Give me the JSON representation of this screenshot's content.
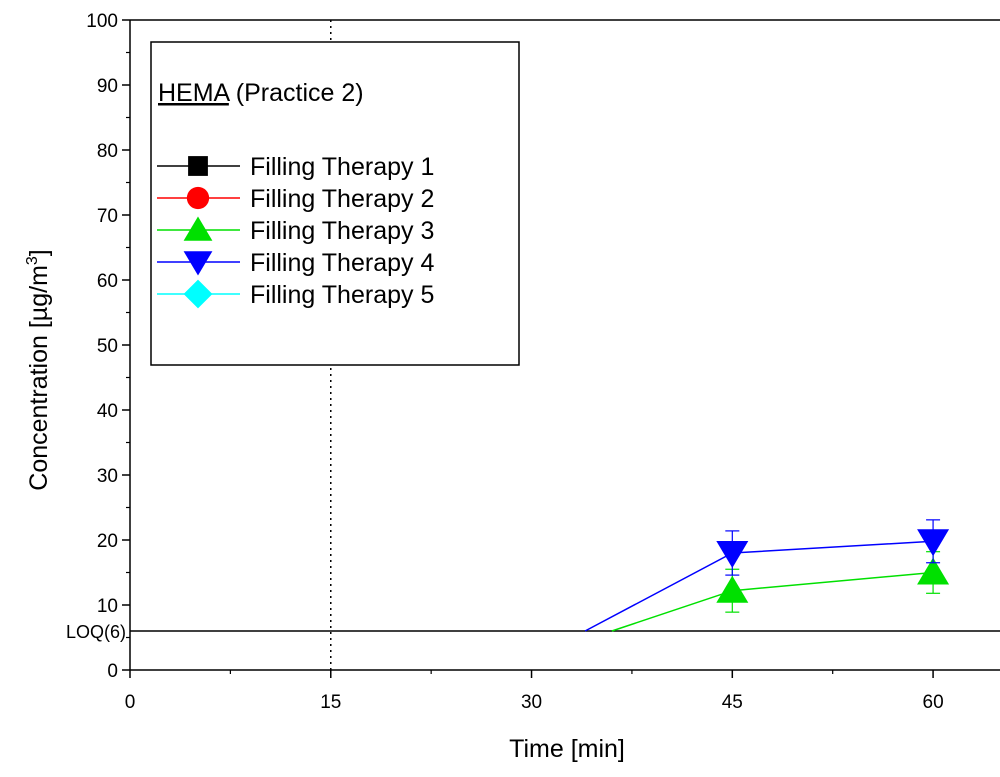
{
  "chart_data": {
    "type": "line",
    "xlabel": "Time [min]",
    "ylabel_main": "Concentration [µg/m",
    "ylabel_sup": "3",
    "ylabel_end": "]",
    "xlim": [
      0,
      65
    ],
    "ylim": [
      0,
      100
    ],
    "xticks": [
      0,
      15,
      30,
      45,
      60
    ],
    "xtick_labels": [
      "0",
      "15",
      "30",
      "45",
      "60"
    ],
    "yticks": [
      0,
      10,
      20,
      30,
      40,
      50,
      60,
      70,
      80,
      90,
      100
    ],
    "ytick_labels": [
      "0",
      "10",
      "20",
      "30",
      "40",
      "50",
      "60",
      "70",
      "80",
      "90",
      "100"
    ],
    "vertical_reference_x": 15,
    "loq": {
      "value": 6,
      "label": "LOQ(6)"
    },
    "legend_title_underlined": "HEMA",
    "legend_title_rest": " (Practice 2)",
    "legend_position": "top-left",
    "series": [
      {
        "name": "Filling Therapy 1",
        "color": "#000000",
        "marker": "square",
        "points": []
      },
      {
        "name": "Filling Therapy 2",
        "color": "#ff0000",
        "marker": "circle",
        "points": []
      },
      {
        "name": "Filling Therapy 3",
        "color": "#00e000",
        "marker": "triangle-up",
        "line_start": [
          36,
          6
        ],
        "points": [
          {
            "x": 45,
            "y": 12.2,
            "err": 3.3
          },
          {
            "x": 60,
            "y": 15,
            "err": 3.2
          }
        ]
      },
      {
        "name": "Filling Therapy 4",
        "color": "#0000ff",
        "marker": "triangle-down",
        "line_start": [
          34,
          6
        ],
        "points": [
          {
            "x": 45,
            "y": 18,
            "err": 3.4
          },
          {
            "x": 60,
            "y": 19.8,
            "err": 3.3
          }
        ]
      },
      {
        "name": "Filling Therapy 5",
        "color": "#00ffff",
        "marker": "diamond",
        "points": []
      }
    ]
  }
}
